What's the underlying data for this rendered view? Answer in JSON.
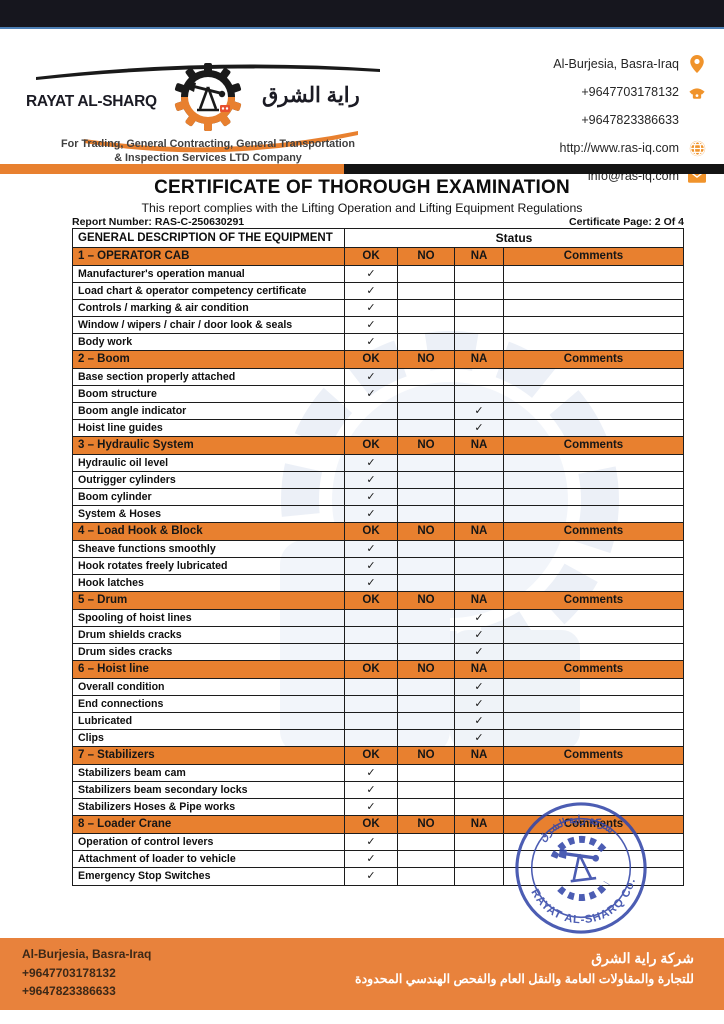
{
  "brand": {
    "company_name_en": "RAYAT AL-SHARQ",
    "company_name_ar": "راية الشرق",
    "tagline_line1": "For Trading, General Contracting, General Transportation",
    "tagline_line2": "& Inspection Services LTD Company"
  },
  "header_contacts": [
    {
      "text": "Al-Burjesia, Basra-Iraq",
      "icon": "location-pin-icon"
    },
    {
      "text": "+9647703178132",
      "icon": "phone-icon"
    },
    {
      "text": "+9647823386633",
      "icon": "none"
    },
    {
      "text": "http://www.ras-iq.com",
      "icon": "globe-icon"
    },
    {
      "text": "info@ras-iq.com",
      "icon": "envelope-icon"
    }
  ],
  "certificate": {
    "title": "CERTIFICATE OF THOROUGH EXAMINATION",
    "subtitle": "This report complies with the Lifting Operation and Lifting Equipment Regulations",
    "report_number": "Report Number: RAS-C-250630291",
    "page_label": "Certificate Page: 2 Of 4"
  },
  "table": {
    "checkmark": "✓",
    "description_header": "GENERAL DESCRIPTION OF THE EQUIPMENT",
    "status_header": "Status",
    "columns": [
      "OK",
      "NO",
      "NA",
      "Comments"
    ],
    "sections": [
      {
        "title": "1 – OPERATOR CAB",
        "rows": [
          {
            "label": "Manufacturer's operation manual",
            "status": "OK"
          },
          {
            "label": "Load chart & operator competency certificate",
            "status": "OK"
          },
          {
            "label": "Controls / marking & air condition",
            "status": "OK"
          },
          {
            "label": "Window / wipers / chair / door look & seals",
            "status": "OK"
          },
          {
            "label": "Body work",
            "status": "OK"
          }
        ]
      },
      {
        "title": "2 – Boom",
        "rows": [
          {
            "label": "Base section properly attached",
            "status": "OK"
          },
          {
            "label": "Boom structure",
            "status": "OK"
          },
          {
            "label": "Boom angle indicator",
            "status": "NA"
          },
          {
            "label": "Hoist line guides",
            "status": "NA"
          }
        ]
      },
      {
        "title": "3 – Hydraulic System",
        "rows": [
          {
            "label": "Hydraulic oil level",
            "status": "OK"
          },
          {
            "label": "Outrigger cylinders",
            "status": "OK"
          },
          {
            "label": "Boom cylinder",
            "status": "OK"
          },
          {
            "label": "System & Hoses",
            "status": "OK"
          }
        ]
      },
      {
        "title": "4 – Load Hook & Block",
        "rows": [
          {
            "label": "Sheave functions smoothly",
            "status": "OK"
          },
          {
            "label": "Hook rotates freely lubricated",
            "status": "OK"
          },
          {
            "label": "Hook latches",
            "status": "OK"
          }
        ]
      },
      {
        "title": "5 – Drum",
        "rows": [
          {
            "label": "Spooling of hoist lines",
            "status": "NA"
          },
          {
            "label": "Drum shields cracks",
            "status": "NA"
          },
          {
            "label": "Drum sides cracks",
            "status": "NA"
          }
        ]
      },
      {
        "title": "6 – Hoist line",
        "rows": [
          {
            "label": "Overall condition",
            "status": "NA"
          },
          {
            "label": "End connections",
            "status": "NA"
          },
          {
            "label": "Lubricated",
            "status": "NA"
          },
          {
            "label": "Clips",
            "status": "NA"
          }
        ]
      },
      {
        "title": "7 – Stabilizers",
        "rows": [
          {
            "label": "Stabilizers beam cam",
            "status": "OK"
          },
          {
            "label": "Stabilizers beam secondary locks",
            "status": "OK"
          },
          {
            "label": "Stabilizers Hoses & Pipe works",
            "status": "OK"
          }
        ]
      },
      {
        "title": "8 – Loader Crane",
        "rows": [
          {
            "label": "Operation of control levers",
            "status": "OK"
          },
          {
            "label": "Attachment of loader to vehicle",
            "status": "OK"
          },
          {
            "label": "Emergency Stop Switches",
            "status": "OK"
          }
        ]
      }
    ]
  },
  "stamp": {
    "top_text_ar": "شركة راية الشرق",
    "bottom_text": "RAYAT AL-SHARQ Co."
  },
  "footer": {
    "address": "Al-Burjesia, Basra-Iraq",
    "phone1": "+9647703178132",
    "phone2": "+9647823386633",
    "company_ar": "شركة راية الشرق",
    "description_ar": "للتجارة والمقاولات العامة والنقل العام والفحص الهندسي المحدودة"
  },
  "colors": {
    "accent_orange": "#E8802F",
    "footer_orange": "#E8823C",
    "topbar_dark": "#16161E",
    "topbar_blue_line": "#4C7FB5",
    "stamp_blue": "#3447A9"
  }
}
